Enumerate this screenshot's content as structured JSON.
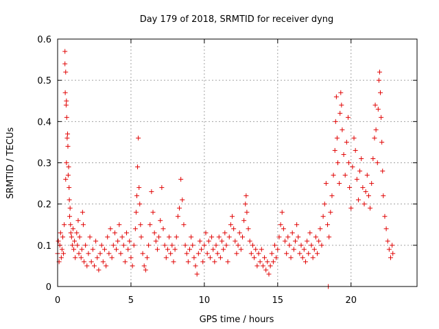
{
  "chart_data": {
    "type": "scatter",
    "title": "Day 179 of 2018, SRMTID for receiver dyng",
    "xlabel": "GPS time / hours",
    "ylabel": "SRMTID / TECUs",
    "xlim": [
      0,
      24.5
    ],
    "ylim": [
      0,
      0.6
    ],
    "xticks": [
      "0",
      "5",
      "10",
      "15",
      "20"
    ],
    "yticks": [
      "0",
      "0.1",
      "0.2",
      "0.3",
      "0.4",
      "0.5",
      "0.6"
    ],
    "grid": true,
    "marker": "plus",
    "color": "#e00000",
    "series": [
      {
        "name": "SRMTID",
        "points": [
          [
            0.0,
            0.08
          ],
          [
            0.05,
            0.11
          ],
          [
            0.1,
            0.06
          ],
          [
            0.15,
            0.1
          ],
          [
            0.2,
            0.13
          ],
          [
            0.25,
            0.07
          ],
          [
            0.3,
            0.09
          ],
          [
            0.35,
            0.12
          ],
          [
            0.4,
            0.08
          ],
          [
            0.45,
            0.15
          ],
          [
            0.5,
            0.57
          ],
          [
            0.5,
            0.54
          ],
          [
            0.52,
            0.47
          ],
          [
            0.55,
            0.52
          ],
          [
            0.58,
            0.44
          ],
          [
            0.6,
            0.45
          ],
          [
            0.62,
            0.41
          ],
          [
            0.65,
            0.36
          ],
          [
            0.6,
            0.3
          ],
          [
            0.68,
            0.37
          ],
          [
            0.7,
            0.34
          ],
          [
            0.72,
            0.27
          ],
          [
            0.75,
            0.29
          ],
          [
            0.55,
            0.26
          ],
          [
            0.78,
            0.24
          ],
          [
            0.8,
            0.21
          ],
          [
            0.82,
            0.17
          ],
          [
            0.85,
            0.19
          ],
          [
            0.88,
            0.15
          ],
          [
            0.9,
            0.13
          ],
          [
            0.95,
            0.12
          ],
          [
            1.0,
            0.1
          ],
          [
            1.05,
            0.14
          ],
          [
            1.1,
            0.09
          ],
          [
            1.15,
            0.11
          ],
          [
            1.2,
            0.07
          ],
          [
            1.3,
            0.13
          ],
          [
            1.35,
            0.1
          ],
          [
            1.4,
            0.16
          ],
          [
            1.45,
            0.08
          ],
          [
            1.5,
            0.12
          ],
          [
            1.6,
            0.07
          ],
          [
            1.65,
            0.09
          ],
          [
            1.7,
            0.18
          ],
          [
            1.75,
            0.15
          ],
          [
            1.8,
            0.06
          ],
          [
            1.9,
            0.1
          ],
          [
            2.0,
            0.05
          ],
          [
            2.1,
            0.08
          ],
          [
            2.2,
            0.12
          ],
          [
            2.3,
            0.06
          ],
          [
            2.4,
            0.09
          ],
          [
            2.5,
            0.05
          ],
          [
            2.6,
            0.11
          ],
          [
            2.7,
            0.07
          ],
          [
            2.8,
            0.04
          ],
          [
            2.9,
            0.08
          ],
          [
            3.0,
            0.1
          ],
          [
            3.1,
            0.06
          ],
          [
            3.2,
            0.09
          ],
          [
            3.3,
            0.05
          ],
          [
            3.4,
            0.12
          ],
          [
            3.5,
            0.08
          ],
          [
            3.6,
            0.14
          ],
          [
            3.7,
            0.07
          ],
          [
            3.8,
            0.1
          ],
          [
            3.9,
            0.13
          ],
          [
            4.0,
            0.09
          ],
          [
            4.1,
            0.11
          ],
          [
            4.2,
            0.15
          ],
          [
            4.3,
            0.08
          ],
          [
            4.4,
            0.12
          ],
          [
            4.5,
            0.1
          ],
          [
            4.6,
            0.06
          ],
          [
            4.7,
            0.13
          ],
          [
            4.8,
            0.09
          ],
          [
            4.9,
            0.11
          ],
          [
            5.0,
            0.07
          ],
          [
            5.1,
            0.05
          ],
          [
            5.2,
            0.1
          ],
          [
            5.3,
            0.14
          ],
          [
            5.35,
            0.18
          ],
          [
            5.4,
            0.22
          ],
          [
            5.45,
            0.29
          ],
          [
            5.5,
            0.36
          ],
          [
            5.55,
            0.24
          ],
          [
            5.6,
            0.2
          ],
          [
            5.65,
            0.15
          ],
          [
            5.7,
            0.12
          ],
          [
            5.8,
            0.08
          ],
          [
            5.9,
            0.05
          ],
          [
            6.0,
            0.04
          ],
          [
            6.1,
            0.07
          ],
          [
            6.2,
            0.1
          ],
          [
            6.3,
            0.15
          ],
          [
            6.4,
            0.23
          ],
          [
            6.5,
            0.18
          ],
          [
            6.6,
            0.13
          ],
          [
            6.7,
            0.11
          ],
          [
            6.8,
            0.09
          ],
          [
            6.9,
            0.12
          ],
          [
            7.0,
            0.16
          ],
          [
            7.1,
            0.24
          ],
          [
            7.2,
            0.14
          ],
          [
            7.3,
            0.1
          ],
          [
            7.4,
            0.07
          ],
          [
            7.5,
            0.09
          ],
          [
            7.6,
            0.12
          ],
          [
            7.7,
            0.08
          ],
          [
            7.8,
            0.1
          ],
          [
            7.9,
            0.06
          ],
          [
            8.0,
            0.09
          ],
          [
            8.1,
            0.12
          ],
          [
            8.2,
            0.17
          ],
          [
            8.3,
            0.19
          ],
          [
            8.4,
            0.26
          ],
          [
            8.5,
            0.21
          ],
          [
            8.6,
            0.15
          ],
          [
            8.7,
            0.1
          ],
          [
            8.8,
            0.08
          ],
          [
            8.9,
            0.06
          ],
          [
            9.0,
            0.09
          ],
          [
            9.1,
            0.12
          ],
          [
            9.2,
            0.1
          ],
          [
            9.3,
            0.07
          ],
          [
            9.4,
            0.05
          ],
          [
            9.5,
            0.03
          ],
          [
            9.6,
            0.08
          ],
          [
            9.7,
            0.11
          ],
          [
            9.8,
            0.09
          ],
          [
            9.9,
            0.06
          ],
          [
            10.0,
            0.1
          ],
          [
            10.1,
            0.13
          ],
          [
            10.2,
            0.08
          ],
          [
            10.3,
            0.11
          ],
          [
            10.4,
            0.07
          ],
          [
            10.5,
            0.12
          ],
          [
            10.6,
            0.09
          ],
          [
            10.7,
            0.06
          ],
          [
            10.8,
            0.1
          ],
          [
            10.9,
            0.08
          ],
          [
            11.0,
            0.12
          ],
          [
            11.1,
            0.07
          ],
          [
            11.2,
            0.11
          ],
          [
            11.3,
            0.09
          ],
          [
            11.4,
            0.13
          ],
          [
            11.5,
            0.1
          ],
          [
            11.6,
            0.06
          ],
          [
            11.7,
            0.12
          ],
          [
            11.8,
            0.15
          ],
          [
            11.9,
            0.17
          ],
          [
            12.0,
            0.14
          ],
          [
            12.1,
            0.11
          ],
          [
            12.2,
            0.08
          ],
          [
            12.3,
            0.1
          ],
          [
            12.4,
            0.13
          ],
          [
            12.5,
            0.09
          ],
          [
            12.6,
            0.12
          ],
          [
            12.7,
            0.16
          ],
          [
            12.8,
            0.2
          ],
          [
            12.85,
            0.22
          ],
          [
            12.9,
            0.18
          ],
          [
            13.0,
            0.14
          ],
          [
            13.1,
            0.11
          ],
          [
            13.2,
            0.08
          ],
          [
            13.3,
            0.1
          ],
          [
            13.4,
            0.07
          ],
          [
            13.5,
            0.09
          ],
          [
            13.6,
            0.05
          ],
          [
            13.7,
            0.08
          ],
          [
            13.8,
            0.06
          ],
          [
            13.9,
            0.09
          ],
          [
            14.0,
            0.05
          ],
          [
            14.1,
            0.07
          ],
          [
            14.2,
            0.04
          ],
          [
            14.3,
            0.06
          ],
          [
            14.4,
            0.03
          ],
          [
            14.5,
            0.05
          ],
          [
            14.6,
            0.08
          ],
          [
            14.7,
            0.06
          ],
          [
            14.8,
            0.1
          ],
          [
            14.9,
            0.07
          ],
          [
            15.0,
            0.09
          ],
          [
            15.1,
            0.12
          ],
          [
            15.2,
            0.15
          ],
          [
            15.3,
            0.18
          ],
          [
            15.4,
            0.14
          ],
          [
            15.5,
            0.11
          ],
          [
            15.6,
            0.08
          ],
          [
            15.7,
            0.12
          ],
          [
            15.8,
            0.1
          ],
          [
            15.9,
            0.07
          ],
          [
            16.0,
            0.13
          ],
          [
            16.1,
            0.09
          ],
          [
            16.2,
            0.11
          ],
          [
            16.3,
            0.15
          ],
          [
            16.4,
            0.12
          ],
          [
            16.5,
            0.08
          ],
          [
            16.6,
            0.1
          ],
          [
            16.7,
            0.07
          ],
          [
            16.8,
            0.09
          ],
          [
            16.9,
            0.06
          ],
          [
            17.0,
            0.11
          ],
          [
            17.1,
            0.08
          ],
          [
            17.2,
            0.13
          ],
          [
            17.3,
            0.1
          ],
          [
            17.4,
            0.07
          ],
          [
            17.5,
            0.09
          ],
          [
            17.6,
            0.12
          ],
          [
            17.7,
            0.08
          ],
          [
            17.8,
            0.11
          ],
          [
            17.9,
            0.14
          ],
          [
            18.0,
            0.1
          ],
          [
            18.1,
            0.17
          ],
          [
            18.2,
            0.2
          ],
          [
            18.3,
            0.25
          ],
          [
            18.4,
            0.15
          ],
          [
            18.5,
            0.12
          ],
          [
            18.6,
            0.18
          ],
          [
            18.7,
            0.22
          ],
          [
            18.8,
            0.27
          ],
          [
            18.9,
            0.33
          ],
          [
            18.95,
            0.4
          ],
          [
            19.0,
            0.46
          ],
          [
            19.05,
            0.36
          ],
          [
            19.1,
            0.3
          ],
          [
            19.2,
            0.25
          ],
          [
            19.25,
            0.42
          ],
          [
            19.3,
            0.47
          ],
          [
            19.35,
            0.44
          ],
          [
            19.4,
            0.38
          ],
          [
            19.5,
            0.32
          ],
          [
            19.6,
            0.27
          ],
          [
            19.7,
            0.35
          ],
          [
            19.8,
            0.41
          ],
          [
            19.85,
            0.3
          ],
          [
            19.9,
            0.24
          ],
          [
            20.0,
            0.19
          ],
          [
            20.1,
            0.29
          ],
          [
            20.2,
            0.36
          ],
          [
            20.3,
            0.33
          ],
          [
            20.4,
            0.26
          ],
          [
            20.5,
            0.21
          ],
          [
            20.6,
            0.28
          ],
          [
            20.7,
            0.31
          ],
          [
            20.8,
            0.24
          ],
          [
            20.9,
            0.2
          ],
          [
            21.0,
            0.23
          ],
          [
            21.1,
            0.27
          ],
          [
            21.2,
            0.22
          ],
          [
            21.3,
            0.19
          ],
          [
            21.4,
            0.25
          ],
          [
            21.5,
            0.31
          ],
          [
            21.6,
            0.36
          ],
          [
            21.65,
            0.44
          ],
          [
            21.7,
            0.38
          ],
          [
            21.8,
            0.3
          ],
          [
            21.85,
            0.43
          ],
          [
            21.9,
            0.5
          ],
          [
            21.95,
            0.52
          ],
          [
            22.0,
            0.47
          ],
          [
            22.05,
            0.41
          ],
          [
            22.1,
            0.35
          ],
          [
            22.15,
            0.28
          ],
          [
            22.2,
            0.22
          ],
          [
            22.3,
            0.17
          ],
          [
            22.4,
            0.14
          ],
          [
            22.5,
            0.11
          ],
          [
            22.6,
            0.09
          ],
          [
            22.7,
            0.07
          ],
          [
            22.8,
            0.1
          ],
          [
            22.85,
            0.08
          ],
          [
            18.45,
            0.0
          ]
        ]
      }
    ]
  }
}
